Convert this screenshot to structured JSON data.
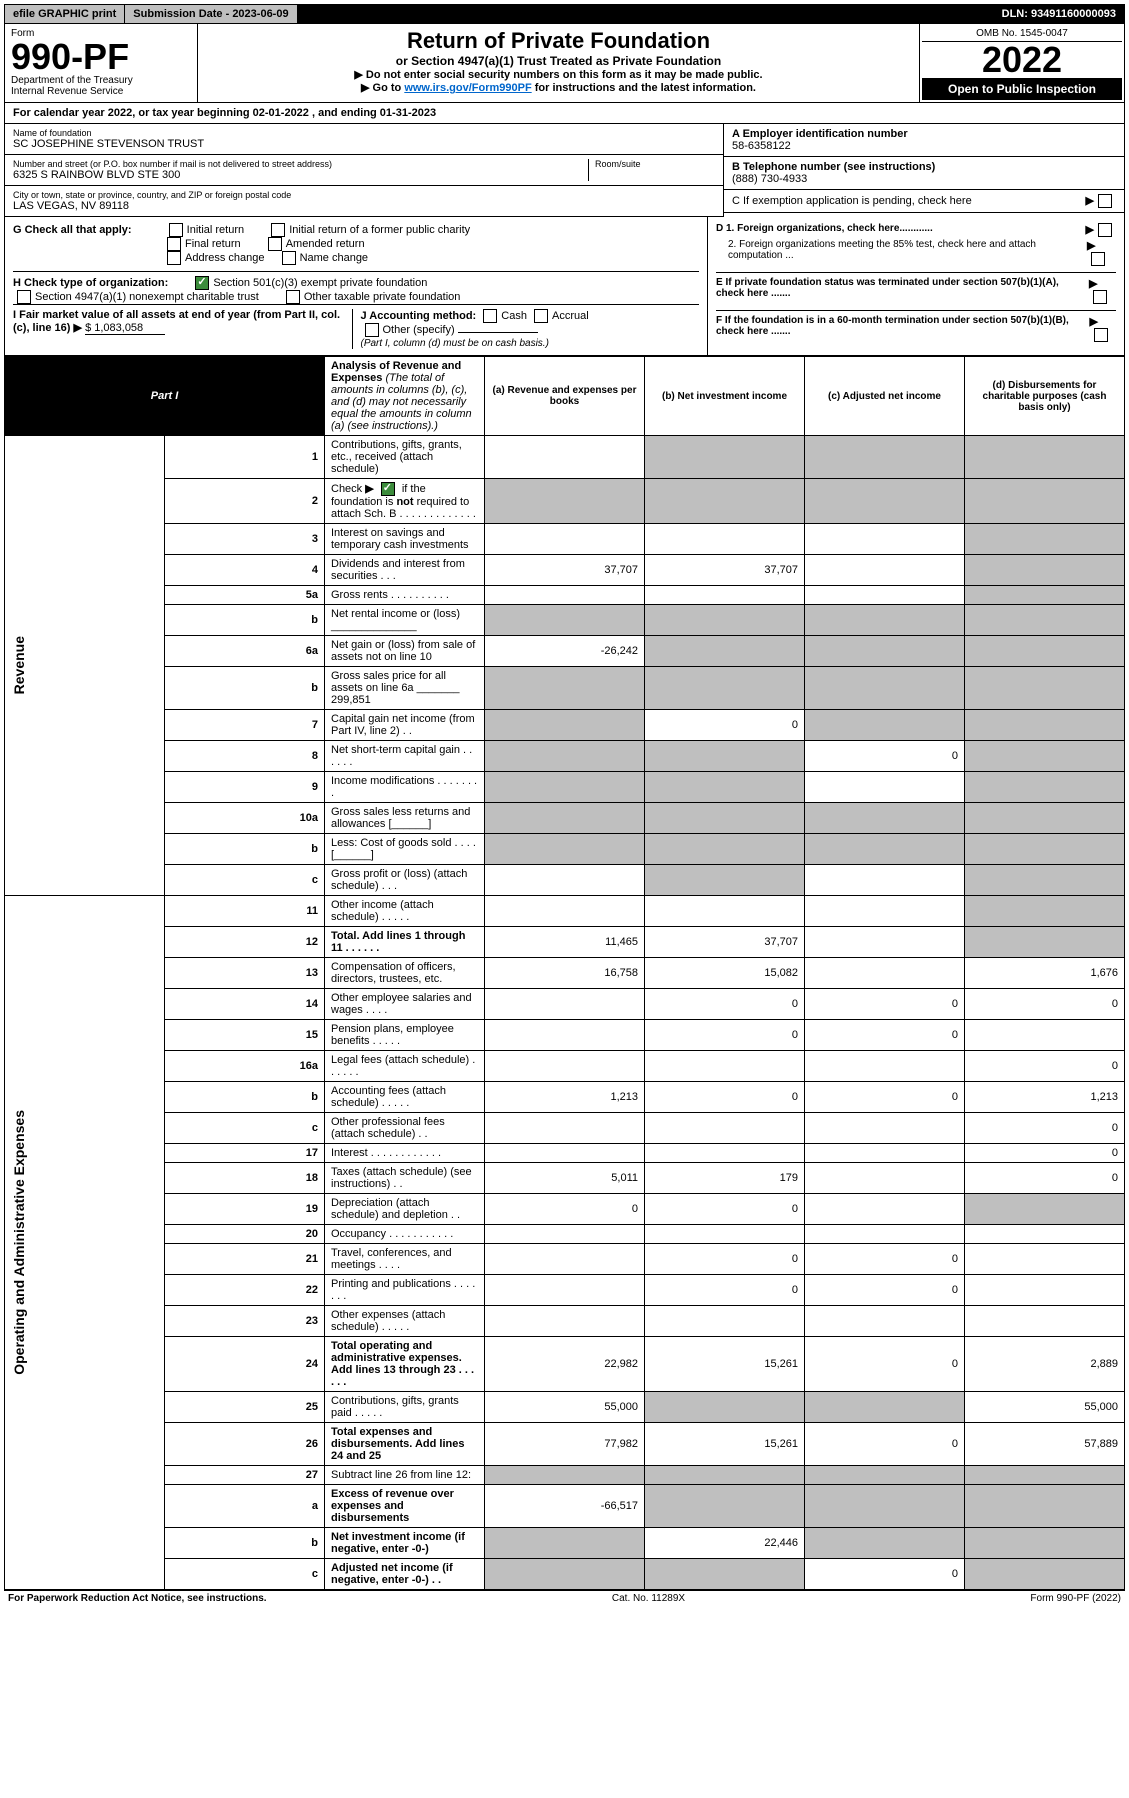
{
  "topbar": {
    "efile": "efile GRAPHIC print",
    "submission": "Submission Date - 2023-06-09",
    "dln": "DLN: 93491160000093"
  },
  "header": {
    "form_label": "Form",
    "form_num": "990-PF",
    "dept": "Department of the Treasury",
    "irs": "Internal Revenue Service",
    "title": "Return of Private Foundation",
    "subtitle": "or Section 4947(a)(1) Trust Treated as Private Foundation",
    "instr1": "▶ Do not enter social security numbers on this form as it may be made public.",
    "instr2_pre": "▶ Go to ",
    "instr2_link": "www.irs.gov/Form990PF",
    "instr2_post": " for instructions and the latest information.",
    "omb": "OMB No. 1545-0047",
    "year": "2022",
    "open": "Open to Public Inspection"
  },
  "calyear": "For calendar year 2022, or tax year beginning 02-01-2022 , and ending 01-31-2023",
  "info": {
    "name_label": "Name of foundation",
    "name": "SC JOSEPHINE STEVENSON TRUST",
    "addr_label": "Number and street (or P.O. box number if mail is not delivered to street address)",
    "addr": "6325 S RAINBOW BLVD STE 300",
    "room_label": "Room/suite",
    "city_label": "City or town, state or province, country, and ZIP or foreign postal code",
    "city": "LAS VEGAS, NV  89118",
    "a_label": "A Employer identification number",
    "a_val": "58-6358122",
    "b_label": "B Telephone number (see instructions)",
    "b_val": "(888) 730-4933",
    "c_label": "C If exemption application is pending, check here",
    "g_label": "G Check all that apply:",
    "g_opts": [
      "Initial return",
      "Initial return of a former public charity",
      "Final return",
      "Amended return",
      "Address change",
      "Name change"
    ],
    "h_label": "H Check type of organization:",
    "h_opt1": "Section 501(c)(3) exempt private foundation",
    "h_opt2": "Section 4947(a)(1) nonexempt charitable trust",
    "h_opt3": "Other taxable private foundation",
    "i_label": "I Fair market value of all assets at end of year (from Part II, col. (c), line 16)",
    "i_val": "$  1,083,058",
    "j_label": "J Accounting method:",
    "j_opts": [
      "Cash",
      "Accrual",
      "Other (specify)"
    ],
    "j_note": "(Part I, column (d) must be on cash basis.)",
    "d1": "D 1. Foreign organizations, check here............",
    "d2": "2. Foreign organizations meeting the 85% test, check here and attach computation ...",
    "e": "E If private foundation status was terminated under section 507(b)(1)(A), check here .......",
    "f": "F If the foundation is in a 60-month termination under section 507(b)(1)(B), check here .......",
    "arrow": "▶"
  },
  "part1": {
    "tag": "Part I",
    "title": "Analysis of Revenue and Expenses",
    "note": "(The total of amounts in columns (b), (c), and (d) may not necessarily equal the amounts in column (a) (see instructions).)",
    "cols": {
      "a": "(a) Revenue and expenses per books",
      "b": "(b) Net investment income",
      "c": "(c) Adjusted net income",
      "d": "(d) Disbursements for charitable purposes (cash basis only)"
    }
  },
  "sides": {
    "rev": "Revenue",
    "op": "Operating and Administrative Expenses"
  },
  "rows": [
    {
      "n": "1",
      "d": "Contributions, gifts, grants, etc., received (attach schedule)",
      "a": "",
      "b": "",
      "c": "",
      "dd": "",
      "shade": [
        "b",
        "c",
        "dd"
      ]
    },
    {
      "n": "2",
      "d": "Check ▶ ✅ if the foundation is not required to attach Sch. B",
      "a": "",
      "b": "",
      "c": "",
      "dd": "",
      "shade": [
        "a",
        "b",
        "c",
        "dd"
      ],
      "isCheck": true
    },
    {
      "n": "3",
      "d": "Interest on savings and temporary cash investments",
      "a": "",
      "b": "",
      "c": "",
      "dd": "",
      "shade": [
        "dd"
      ]
    },
    {
      "n": "4",
      "d": "Dividends and interest from securities   .   .   .",
      "a": "37,707",
      "b": "37,707",
      "c": "",
      "dd": "",
      "shade": [
        "dd"
      ]
    },
    {
      "n": "5a",
      "d": "Gross rents   .   .   .   .   .   .   .   .   .   .",
      "a": "",
      "b": "",
      "c": "",
      "dd": "",
      "shade": [
        "dd"
      ]
    },
    {
      "n": "b",
      "d": "Net rental income or (loss)  ______________",
      "a": "",
      "b": "",
      "c": "",
      "dd": "",
      "shade": [
        "a",
        "b",
        "c",
        "dd"
      ]
    },
    {
      "n": "6a",
      "d": "Net gain or (loss) from sale of assets not on line 10",
      "a": "-26,242",
      "b": "",
      "c": "",
      "dd": "",
      "shade": [
        "b",
        "c",
        "dd"
      ]
    },
    {
      "n": "b",
      "d": "Gross sales price for all assets on line 6a _______ 299,851",
      "a": "",
      "b": "",
      "c": "",
      "dd": "",
      "shade": [
        "a",
        "b",
        "c",
        "dd"
      ]
    },
    {
      "n": "7",
      "d": "Capital gain net income (from Part IV, line 2)   .   .",
      "a": "",
      "b": "0",
      "c": "",
      "dd": "",
      "shade": [
        "a",
        "c",
        "dd"
      ]
    },
    {
      "n": "8",
      "d": "Net short-term capital gain   .   .   .   .   .   .",
      "a": "",
      "b": "",
      "c": "0",
      "dd": "",
      "shade": [
        "a",
        "b",
        "dd"
      ]
    },
    {
      "n": "9",
      "d": "Income modifications   .   .   .   .   .   .   .   .",
      "a": "",
      "b": "",
      "c": "",
      "dd": "",
      "shade": [
        "a",
        "b",
        "dd"
      ]
    },
    {
      "n": "10a",
      "d": "Gross sales less returns and allowances  [______]",
      "a": "",
      "b": "",
      "c": "",
      "dd": "",
      "shade": [
        "a",
        "b",
        "c",
        "dd"
      ]
    },
    {
      "n": "b",
      "d": "Less: Cost of goods sold   .   .   .   .   [______]",
      "a": "",
      "b": "",
      "c": "",
      "dd": "",
      "shade": [
        "a",
        "b",
        "c",
        "dd"
      ]
    },
    {
      "n": "c",
      "d": "Gross profit or (loss) (attach schedule)   .   .   .",
      "a": "",
      "b": "",
      "c": "",
      "dd": "",
      "shade": [
        "b",
        "dd"
      ]
    },
    {
      "n": "11",
      "d": "Other income (attach schedule)   .   .   .   .   .",
      "a": "",
      "b": "",
      "c": "",
      "dd": "",
      "shade": [
        "dd"
      ]
    },
    {
      "n": "12",
      "d": "Total. Add lines 1 through 11   .   .   .   .   .   .",
      "a": "11,465",
      "b": "37,707",
      "c": "",
      "dd": "",
      "shade": [
        "dd"
      ],
      "bold": true
    },
    {
      "n": "13",
      "d": "Compensation of officers, directors, trustees, etc.",
      "a": "16,758",
      "b": "15,082",
      "c": "",
      "dd": "1,676"
    },
    {
      "n": "14",
      "d": "Other employee salaries and wages   .   .   .   .",
      "a": "",
      "b": "0",
      "c": "0",
      "dd": "0"
    },
    {
      "n": "15",
      "d": "Pension plans, employee benefits   .   .   .   .   .",
      "a": "",
      "b": "0",
      "c": "0",
      "dd": ""
    },
    {
      "n": "16a",
      "d": "Legal fees (attach schedule)   .   .   .   .   .   .",
      "a": "",
      "b": "",
      "c": "",
      "dd": "0"
    },
    {
      "n": "b",
      "d": "Accounting fees (attach schedule)   .   .   .   .   .",
      "a": "1,213",
      "b": "0",
      "c": "0",
      "dd": "1,213"
    },
    {
      "n": "c",
      "d": "Other professional fees (attach schedule)   .   .",
      "a": "",
      "b": "",
      "c": "",
      "dd": "0"
    },
    {
      "n": "17",
      "d": "Interest   .   .   .   .   .   .   .   .   .   .   .   .",
      "a": "",
      "b": "",
      "c": "",
      "dd": "0"
    },
    {
      "n": "18",
      "d": "Taxes (attach schedule) (see instructions)   .   .",
      "a": "5,011",
      "b": "179",
      "c": "",
      "dd": "0"
    },
    {
      "n": "19",
      "d": "Depreciation (attach schedule) and depletion   .   .",
      "a": "0",
      "b": "0",
      "c": "",
      "dd": "",
      "shade": [
        "dd"
      ]
    },
    {
      "n": "20",
      "d": "Occupancy   .   .   .   .   .   .   .   .   .   .   .",
      "a": "",
      "b": "",
      "c": "",
      "dd": ""
    },
    {
      "n": "21",
      "d": "Travel, conferences, and meetings   .   .   .   .",
      "a": "",
      "b": "0",
      "c": "0",
      "dd": ""
    },
    {
      "n": "22",
      "d": "Printing and publications   .   .   .   .   .   .   .",
      "a": "",
      "b": "0",
      "c": "0",
      "dd": ""
    },
    {
      "n": "23",
      "d": "Other expenses (attach schedule)   .   .   .   .   .",
      "a": "",
      "b": "",
      "c": "",
      "dd": ""
    },
    {
      "n": "24",
      "d": "Total operating and administrative expenses. Add lines 13 through 23   .   .   .   .   .   .",
      "a": "22,982",
      "b": "15,261",
      "c": "0",
      "dd": "2,889",
      "bold": true
    },
    {
      "n": "25",
      "d": "Contributions, gifts, grants paid   .   .   .   .   .",
      "a": "55,000",
      "b": "",
      "c": "",
      "dd": "55,000",
      "shade": [
        "b",
        "c"
      ]
    },
    {
      "n": "26",
      "d": "Total expenses and disbursements. Add lines 24 and 25",
      "a": "77,982",
      "b": "15,261",
      "c": "0",
      "dd": "57,889",
      "bold": true
    },
    {
      "n": "27",
      "d": "Subtract line 26 from line 12:",
      "a": "",
      "b": "",
      "c": "",
      "dd": "",
      "shade": [
        "a",
        "b",
        "c",
        "dd"
      ]
    },
    {
      "n": "a",
      "d": "Excess of revenue over expenses and disbursements",
      "a": "-66,517",
      "b": "",
      "c": "",
      "dd": "",
      "shade": [
        "b",
        "c",
        "dd"
      ],
      "bold": true
    },
    {
      "n": "b",
      "d": "Net investment income (if negative, enter -0-)",
      "a": "",
      "b": "22,446",
      "c": "",
      "dd": "",
      "shade": [
        "a",
        "c",
        "dd"
      ],
      "bold": true
    },
    {
      "n": "c",
      "d": "Adjusted net income (if negative, enter -0-)   .   .",
      "a": "",
      "b": "",
      "c": "0",
      "dd": "",
      "shade": [
        "a",
        "b",
        "dd"
      ],
      "bold": true
    }
  ],
  "footer": {
    "left": "For Paperwork Reduction Act Notice, see instructions.",
    "mid": "Cat. No. 11289X",
    "right": "Form 990-PF (2022)"
  }
}
